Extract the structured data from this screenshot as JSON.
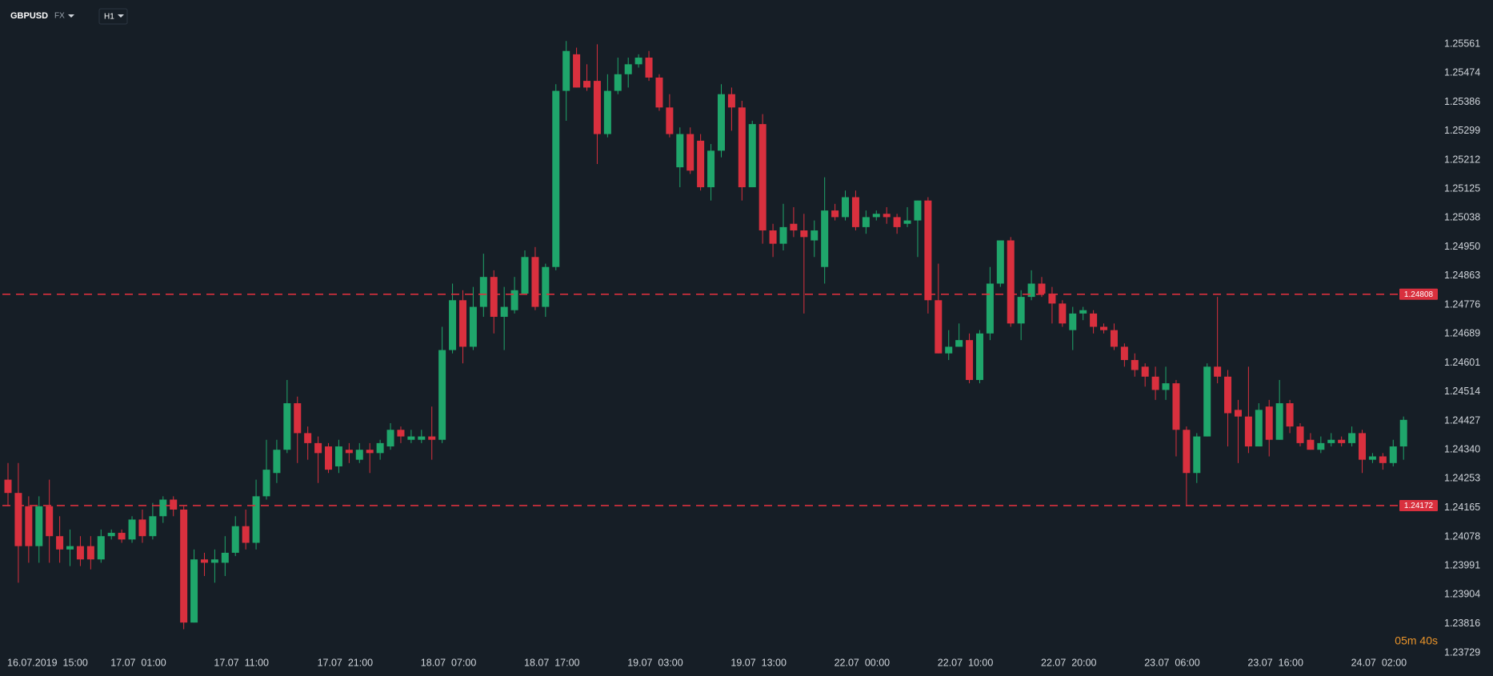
{
  "chart_data": {
    "type": "candlestick",
    "symbol": "GBPUSD",
    "market": "FX",
    "timeframe": "H1",
    "timer": "05m 40s",
    "up_color": "#1fa66b",
    "down_color": "#d9303e",
    "line_color": "#d9303e",
    "hlines": [
      1.24808,
      1.24172
    ],
    "ylim": [
      1.23729,
      1.25561
    ],
    "yticks": [
      1.25561,
      1.25474,
      1.25386,
      1.25299,
      1.25212,
      1.25125,
      1.25038,
      {
        "value": 1.2495,
        "label": "1.24950"
      },
      1.24863,
      1.24776,
      1.24689,
      1.24601,
      1.24514,
      1.24427,
      {
        "value": 1.2434,
        "label": "1.24340"
      },
      1.24253,
      1.24165,
      1.24078,
      1.23991,
      1.23904,
      1.23816,
      1.23729
    ],
    "categories": [
      "16.07.2019  15:00",
      null,
      null,
      null,
      null,
      null,
      null,
      null,
      null,
      null,
      "17.07  01:00",
      null,
      null,
      null,
      null,
      null,
      null,
      null,
      null,
      null,
      "17.07  11:00",
      null,
      null,
      null,
      null,
      null,
      null,
      null,
      null,
      null,
      "17.07  21:00",
      null,
      null,
      null,
      null,
      null,
      null,
      null,
      null,
      null,
      "18.07  07:00",
      null,
      null,
      null,
      null,
      null,
      null,
      null,
      null,
      null,
      "18.07  17:00",
      null,
      null,
      null,
      null,
      null,
      null,
      null,
      null,
      null,
      "19.07  03:00",
      null,
      null,
      null,
      null,
      null,
      null,
      null,
      null,
      null,
      "19.07  13:00",
      null,
      null,
      null,
      null,
      null,
      null,
      null,
      null,
      null,
      "22.07  00:00",
      null,
      null,
      null,
      null,
      null,
      null,
      null,
      null,
      null,
      "22.07  10:00",
      null,
      null,
      null,
      null,
      null,
      null,
      null,
      null,
      null,
      "22.07  20:00",
      null,
      null,
      null,
      null,
      null,
      null,
      null,
      null,
      null,
      "23.07  06:00",
      null,
      null,
      null,
      null,
      null,
      null,
      null,
      null,
      null,
      "23.07  16:00",
      null,
      null,
      null,
      null,
      null,
      null,
      null,
      null,
      null,
      "24.07  02:00",
      null,
      null,
      null,
      null,
      null
    ],
    "open": [
      1.2425,
      1.2421,
      1.2417,
      1.2405,
      1.2417,
      1.2408,
      1.2404,
      1.2405,
      1.2405,
      1.2401,
      1.2408,
      1.2409,
      1.2407,
      1.2413,
      1.2408,
      1.2414,
      1.2419,
      1.2416,
      1.2382,
      1.2401,
      1.24,
      1.24,
      1.2403,
      1.2411,
      1.2406,
      1.242,
      1.2427,
      1.2434,
      1.2448,
      1.2439,
      1.2436,
      1.2435,
      1.2429,
      1.2434,
      1.2431,
      1.2434,
      1.2433,
      1.2435,
      1.244,
      1.2437,
      1.2437,
      1.2438,
      1.2437,
      1.2464,
      1.2479,
      1.2465,
      1.2477,
      1.2486,
      1.2474,
      1.2476,
      1.2481,
      1.2492,
      1.2477,
      1.2489,
      1.2542,
      1.2553,
      1.2545,
      1.2545,
      1.2529,
      1.2542,
      1.2547,
      1.255,
      1.2552,
      1.2546,
      1.2537,
      1.2519,
      1.2529,
      1.2527,
      1.2513,
      1.2524,
      1.2541,
      1.2537,
      1.2513,
      1.2532,
      1.25,
      1.2496,
      1.2502,
      1.25,
      1.2497,
      1.2489,
      1.2506,
      1.2504,
      1.251,
      1.2501,
      1.2504,
      1.2505,
      1.2504,
      1.2502,
      1.2503,
      1.2509,
      1.2479,
      1.2463,
      1.2465,
      1.2467,
      1.2455,
      1.2469,
      1.2484,
      1.2497,
      1.2472,
      1.248,
      1.2484,
      1.2481,
      1.2478,
      1.247,
      1.2475,
      1.2475,
      1.2471,
      1.247,
      1.2465,
      1.2461,
      1.2459,
      1.2456,
      1.2452,
      1.2454,
      1.244,
      1.2427,
      1.2438,
      1.2459,
      1.2456,
      1.2446,
      1.2444,
      1.2435,
      1.2447,
      1.2437,
      1.2448,
      1.2441,
      1.2437,
      1.2434,
      1.2436,
      1.2437,
      1.2436,
      1.2439,
      1.2431,
      1.2432,
      1.243,
      1.2435
    ],
    "high": [
      1.243,
      1.243,
      1.242,
      1.242,
      1.2425,
      1.2414,
      1.241,
      1.2408,
      1.2408,
      1.241,
      1.241,
      1.241,
      1.2414,
      1.2416,
      1.2418,
      1.242,
      1.242,
      1.2417,
      1.2404,
      1.2403,
      1.2404,
      1.2408,
      1.2414,
      1.2416,
      1.2425,
      1.2437,
      1.2437,
      1.2455,
      1.245,
      1.2441,
      1.2438,
      1.2436,
      1.2437,
      1.2436,
      1.2436,
      1.2436,
      1.2437,
      1.2442,
      1.2441,
      1.244,
      1.244,
      1.2447,
      1.2471,
      1.2484,
      1.2482,
      1.2483,
      1.2493,
      1.2488,
      1.2483,
      1.2486,
      1.2494,
      1.2495,
      1.249,
      1.2544,
      1.2557,
      1.2555,
      1.255,
      1.2556,
      1.2547,
      1.2552,
      1.2552,
      1.2553,
      1.2554,
      1.2547,
      1.2541,
      1.2531,
      1.2531,
      1.2529,
      1.2526,
      1.2544,
      1.2543,
      1.2539,
      1.2533,
      1.2535,
      1.2502,
      1.2508,
      1.2507,
      1.2505,
      1.2503,
      1.2516,
      1.2508,
      1.2512,
      1.2512,
      1.2506,
      1.2506,
      1.2507,
      1.2505,
      1.2507,
      1.2509,
      1.251,
      1.249,
      1.247,
      1.2472,
      1.2469,
      1.247,
      1.2489,
      1.2497,
      1.2498,
      1.2482,
      1.2488,
      1.2486,
      1.2483,
      1.2479,
      1.2477,
      1.2477,
      1.2476,
      1.2472,
      1.2472,
      1.2466,
      1.2463,
      1.246,
      1.2459,
      1.2459,
      1.2455,
      1.2441,
      1.2439,
      1.246,
      1.248,
      1.2458,
      1.2449,
      1.2459,
      1.2448,
      1.2449,
      1.2455,
      1.2449,
      1.2442,
      1.2439,
      1.2438,
      1.2439,
      1.2438,
      1.2441,
      1.244,
      1.2433,
      1.2433,
      1.2437,
      1.2444
    ],
    "low": [
      1.2417,
      1.2394,
      1.24,
      1.24,
      1.24,
      1.24,
      1.2399,
      1.2399,
      1.2398,
      1.24,
      1.2407,
      1.2406,
      1.2406,
      1.2406,
      1.2407,
      1.2412,
      1.2414,
      1.238,
      1.2382,
      1.2396,
      1.2394,
      1.2396,
      1.2402,
      1.2404,
      1.2404,
      1.2419,
      1.2424,
      1.2433,
      1.243,
      1.2431,
      1.2424,
      1.2427,
      1.2427,
      1.243,
      1.243,
      1.2427,
      1.2431,
      1.2434,
      1.2436,
      1.2436,
      1.2436,
      1.2431,
      1.2436,
      1.2463,
      1.246,
      1.2464,
      1.2474,
      1.2469,
      1.2464,
      1.2475,
      1.2481,
      1.2476,
      1.2474,
      1.2488,
      1.2533,
      1.2543,
      1.2542,
      1.252,
      1.2528,
      1.2541,
      1.2543,
      1.2549,
      1.2545,
      1.2536,
      1.2528,
      1.2513,
      1.2517,
      1.2512,
      1.2509,
      1.2522,
      1.253,
      1.2509,
      1.2513,
      1.2496,
      1.2492,
      1.2494,
      1.2498,
      1.2475,
      1.2492,
      1.2484,
      1.2503,
      1.2503,
      1.25,
      1.2499,
      1.2503,
      1.2502,
      1.2499,
      1.2501,
      1.2492,
      1.2475,
      1.2463,
      1.2461,
      1.2465,
      1.2454,
      1.2454,
      1.2467,
      1.2483,
      1.2471,
      1.2467,
      1.2479,
      1.248,
      1.2472,
      1.2471,
      1.2464,
      1.2473,
      1.2469,
      1.2469,
      1.2464,
      1.2459,
      1.2456,
      1.2453,
      1.2449,
      1.2449,
      1.2432,
      1.2417,
      1.2424,
      1.2438,
      1.2454,
      1.2435,
      1.243,
      1.2433,
      1.2435,
      1.2432,
      1.2437,
      1.2439,
      1.2435,
      1.2434,
      1.2433,
      1.2435,
      1.2435,
      1.2435,
      1.2427,
      1.243,
      1.2428,
      1.2429,
      1.2431
    ],
    "close": [
      1.2421,
      1.2405,
      1.2405,
      1.2417,
      1.2408,
      1.2404,
      1.2405,
      1.2401,
      1.2401,
      1.2408,
      1.2409,
      1.2407,
      1.2413,
      1.2408,
      1.2414,
      1.2419,
      1.2416,
      1.2382,
      1.2401,
      1.24,
      1.2401,
      1.2403,
      1.2411,
      1.2406,
      1.242,
      1.2428,
      1.2434,
      1.2448,
      1.2439,
      1.2436,
      1.2433,
      1.2428,
      1.2435,
      1.2433,
      1.2434,
      1.2433,
      1.2436,
      1.244,
      1.2438,
      1.2438,
      1.2438,
      1.2437,
      1.2464,
      1.2479,
      1.2465,
      1.2477,
      1.2486,
      1.2474,
      1.2477,
      1.2482,
      1.2492,
      1.2477,
      1.2489,
      1.2542,
      1.2554,
      1.2543,
      1.2543,
      1.2529,
      1.2542,
      1.2547,
      1.255,
      1.2552,
      1.2546,
      1.2537,
      1.2529,
      1.2529,
      1.2518,
      1.2513,
      1.2524,
      1.2541,
      1.2537,
      1.2513,
      1.2532,
      1.25,
      1.2496,
      1.2501,
      1.25,
      1.2498,
      1.25,
      1.2506,
      1.2504,
      1.251,
      1.2501,
      1.2504,
      1.2505,
      1.2504,
      1.2501,
      1.2503,
      1.2509,
      1.2479,
      1.2463,
      1.2465,
      1.2467,
      1.2455,
      1.2469,
      1.2484,
      1.2497,
      1.2472,
      1.248,
      1.2484,
      1.2481,
      1.2478,
      1.2472,
      1.2475,
      1.2476,
      1.2471,
      1.247,
      1.2465,
      1.2461,
      1.2458,
      1.2456,
      1.2452,
      1.2454,
      1.244,
      1.2427,
      1.2438,
      1.2459,
      1.2456,
      1.2445,
      1.2444,
      1.2435,
      1.2446,
      1.2437,
      1.2448,
      1.2441,
      1.2436,
      1.2434,
      1.2436,
      1.2437,
      1.2436,
      1.2439,
      1.2431,
      1.2432,
      1.243,
      1.2435,
      1.2443
    ]
  }
}
